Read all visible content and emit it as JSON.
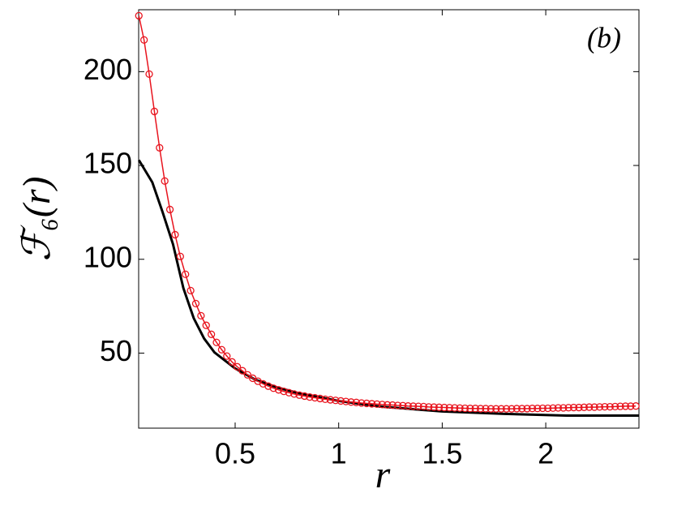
{
  "chart_data": {
    "type": "line",
    "annotation": "(b)",
    "x_label": "r",
    "y_label": "ℱ₆(r)",
    "xlim": [
      0.034,
      2.45
    ],
    "ylim": [
      10,
      233
    ],
    "xticks": [
      0.5,
      1,
      1.5,
      2
    ],
    "yticks": [
      50,
      100,
      150,
      200
    ],
    "grid": false,
    "series": [
      {
        "color": "#000000",
        "markers": false,
        "x": [
          0.035,
          0.1,
          0.15,
          0.2,
          0.25,
          0.3,
          0.35,
          0.4,
          0.5,
          0.6,
          0.7,
          0.8,
          1.0,
          1.2,
          1.5,
          1.8,
          2.1,
          2.45
        ],
        "values": [
          152.9,
          141,
          125,
          108,
          84.6,
          68.6,
          57.8,
          50.4,
          41.8,
          35.7,
          31.8,
          28.8,
          24.5,
          21.5,
          18.9,
          17.6,
          16.7,
          16.7
        ]
      },
      {
        "color": "#e8141e",
        "markers": true,
        "x": [
          0.035,
          0.06,
          0.085,
          0.11,
          0.135,
          0.16,
          0.185,
          0.21,
          0.235,
          0.26,
          0.285,
          0.31,
          0.335,
          0.36,
          0.385,
          0.41,
          0.435,
          0.46,
          0.485,
          0.51,
          0.535,
          0.56,
          0.585,
          0.61,
          0.635,
          0.66,
          0.685,
          0.71,
          0.735,
          0.76,
          0.785,
          0.81,
          0.835,
          0.86,
          0.885,
          0.91,
          0.935,
          0.96,
          0.985,
          1.01,
          1.035,
          1.06,
          1.085,
          1.11,
          1.135,
          1.16,
          1.185,
          1.21,
          1.235,
          1.26,
          1.285,
          1.31,
          1.335,
          1.36,
          1.385,
          1.41,
          1.435,
          1.46,
          1.485,
          1.51,
          1.535,
          1.56,
          1.585,
          1.61,
          1.635,
          1.66,
          1.685,
          1.71,
          1.735,
          1.76,
          1.785,
          1.81,
          1.835,
          1.86,
          1.885,
          1.91,
          1.935,
          1.96,
          1.985,
          2.01,
          2.035,
          2.06,
          2.085,
          2.11,
          2.135,
          2.16,
          2.185,
          2.21,
          2.235,
          2.26,
          2.285,
          2.31,
          2.335,
          2.36,
          2.385,
          2.41,
          2.435
        ],
        "values": [
          229.8,
          216.9,
          198.7,
          178.8,
          159.4,
          141.7,
          126.5,
          113.1,
          101.5,
          92.0,
          83.3,
          76.4,
          69.9,
          64.8,
          60.0,
          55.7,
          51.8,
          48.4,
          45.3,
          42.7,
          40.6,
          38.4,
          36.6,
          35.0,
          33.6,
          32.4,
          31.3,
          30.4,
          29.6,
          28.9,
          28.2,
          27.6,
          27.1,
          26.6,
          26.2,
          25.8,
          25.4,
          25.1,
          24.8,
          24.5,
          24.2,
          23.9,
          23.7,
          23.4,
          23.2,
          23.0,
          22.8,
          22.6,
          22.4,
          22.3,
          22.1,
          22.0,
          21.8,
          21.7,
          21.6,
          21.5,
          21.3,
          21.2,
          21.1,
          21.0,
          20.9,
          20.8,
          20.7,
          20.6,
          20.5,
          20.5,
          20.4,
          20.4,
          20.3,
          20.3,
          20.3,
          20.3,
          20.3,
          20.4,
          20.4,
          20.4,
          20.5,
          20.5,
          20.6,
          20.6,
          20.7,
          20.8,
          20.8,
          20.9,
          21.0,
          21.0,
          21.1,
          21.2,
          21.2,
          21.3,
          21.4,
          21.4,
          21.5,
          21.6,
          21.7,
          21.7,
          21.8
        ]
      }
    ]
  }
}
